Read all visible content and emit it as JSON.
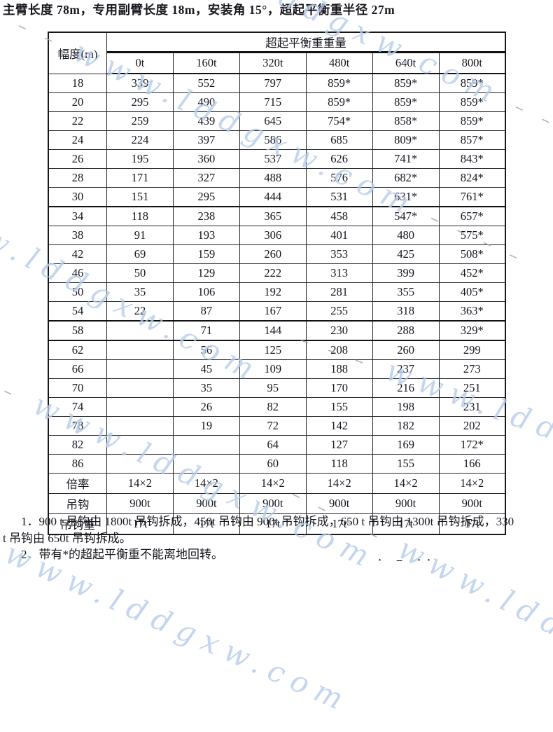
{
  "title": "主臂长度 78m，专用副臂长度 18m，安装角 15°，超起平衡重半径 27m",
  "table": {
    "corner_header": "幅度(m)",
    "group_header": "超起平衡重重量",
    "col_headers": [
      "0t",
      "160t",
      "320t",
      "480t",
      "640t",
      "800t"
    ],
    "rows": [
      {
        "radius": "18",
        "values": [
          "339",
          "552",
          "797",
          "859*",
          "859*",
          "859*"
        ]
      },
      {
        "radius": "20",
        "values": [
          "295",
          "490",
          "715",
          "859*",
          "859*",
          "859*"
        ]
      },
      {
        "radius": "22",
        "values": [
          "259",
          "439",
          "645",
          "754*",
          "858*",
          "859*"
        ]
      },
      {
        "radius": "24",
        "values": [
          "224",
          "397",
          "586",
          "685",
          "809*",
          "857*"
        ]
      },
      {
        "radius": "26",
        "values": [
          "195",
          "360",
          "537",
          "626",
          "741*",
          "843*"
        ]
      },
      {
        "radius": "28",
        "values": [
          "171",
          "327",
          "488",
          "576",
          "682*",
          "824*"
        ]
      },
      {
        "radius": "30",
        "values": [
          "151",
          "295",
          "444",
          "531",
          "631*",
          "761*"
        ]
      },
      {
        "radius": "34",
        "values": [
          "118",
          "238",
          "365",
          "458",
          "547*",
          "657*"
        ]
      },
      {
        "radius": "38",
        "values": [
          "91",
          "193",
          "306",
          "401",
          "480",
          "575*"
        ]
      },
      {
        "radius": "42",
        "values": [
          "69",
          "159",
          "260",
          "353",
          "425",
          "508*"
        ]
      },
      {
        "radius": "46",
        "values": [
          "50",
          "129",
          "222",
          "313",
          "399",
          "452*"
        ]
      },
      {
        "radius": "50",
        "values": [
          "35",
          "106",
          "192",
          "281",
          "355",
          "405*"
        ]
      },
      {
        "radius": "54",
        "values": [
          "22",
          "87",
          "167",
          "255",
          "318",
          "363*"
        ]
      },
      {
        "radius": "58",
        "values": [
          "",
          "71",
          "144",
          "230",
          "288",
          "329*"
        ]
      },
      {
        "radius": "62",
        "values": [
          "",
          "56",
          "125",
          "208",
          "260",
          "299"
        ]
      },
      {
        "radius": "66",
        "values": [
          "",
          "45",
          "109",
          "188",
          "237",
          "273"
        ]
      },
      {
        "radius": "70",
        "values": [
          "",
          "35",
          "95",
          "170",
          "216",
          "251"
        ]
      },
      {
        "radius": "74",
        "values": [
          "",
          "26",
          "82",
          "155",
          "198",
          "231"
        ]
      },
      {
        "radius": "78",
        "values": [
          "",
          "19",
          "72",
          "142",
          "182",
          "202"
        ]
      },
      {
        "radius": "82",
        "values": [
          "",
          "",
          "64",
          "127",
          "169",
          "172*"
        ]
      },
      {
        "radius": "86",
        "values": [
          "",
          "",
          "60",
          "118",
          "155",
          "166"
        ]
      }
    ],
    "footer_rows": [
      {
        "label": "倍率",
        "values": [
          "14×2",
          "14×2",
          "14×2",
          "14×2",
          "14×2",
          "14×2"
        ]
      },
      {
        "label": "吊钩",
        "values": [
          "900t",
          "900t",
          "900t",
          "900t",
          "900t",
          "900t"
        ]
      },
      {
        "label": "吊钩重",
        "values": [
          "17t",
          "17t",
          "17t",
          "17t",
          "17t",
          "17t"
        ]
      }
    ]
  },
  "notes": {
    "n1_line1": "1．900 t 吊钩由 1800t 吊钩拆成，450t 吊钩由 900t 吊钩拆成，650 t 吊钩由 1300t 吊钩拆成，330",
    "n1_line2": "t 吊钩由 650t 吊钩拆成。",
    "n2": "2．带有*的超起平衡重不能离地回转。"
  },
  "watermark": {
    "text": "www.lddgxw.com",
    "dashes": "– – – –",
    "color": "#b6cde9"
  },
  "artifacts": {
    "dots": "· –  ··"
  }
}
